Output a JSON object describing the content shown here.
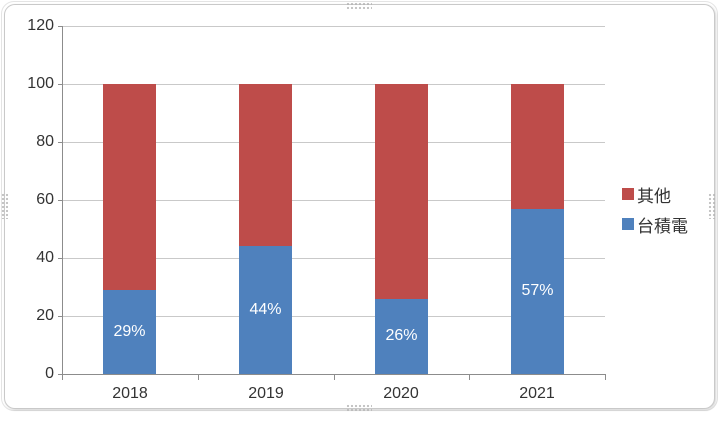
{
  "chart_data": {
    "type": "bar",
    "stacked": true,
    "title": "",
    "xlabel": "",
    "ylabel": "",
    "categories": [
      "2018",
      "2019",
      "2020",
      "2021"
    ],
    "series": [
      {
        "name": "台積電",
        "color": "#4F81BD",
        "values": [
          29,
          44,
          26,
          57
        ],
        "data_labels": [
          "29%",
          "44%",
          "26%",
          "57%"
        ],
        "data_label_color": "#FFFFFF"
      },
      {
        "name": "其他",
        "color": "#BE4C4A",
        "values": [
          71,
          56,
          74,
          43
        ]
      }
    ],
    "ylim": [
      0,
      120
    ],
    "yticks": [
      0,
      20,
      40,
      60,
      80,
      100,
      120
    ],
    "grid": true,
    "legend": {
      "position": "right",
      "entries": [
        "其他",
        "台積電"
      ]
    }
  },
  "colors": {
    "axis_line": "#8C8C8C",
    "gridline": "#C9C9C9",
    "tick_text": "#333333",
    "frame_border": "#C9C9C9"
  }
}
